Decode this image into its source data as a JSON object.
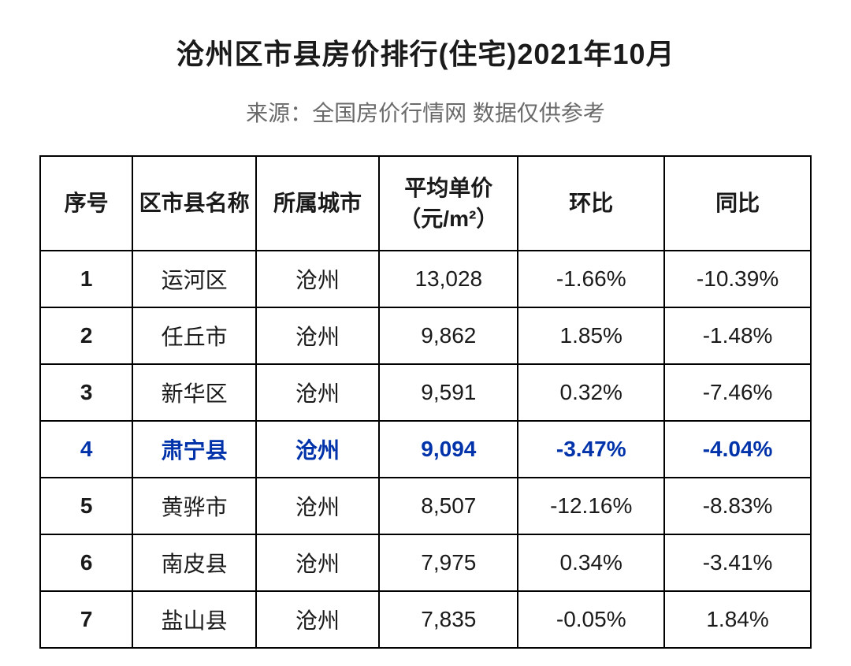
{
  "title": "沧州区市县房价排行(住宅)2021年10月",
  "subtitle": "来源：全国房价行情网 数据仅供参考",
  "table": {
    "columns": [
      "序号",
      "区市县名称",
      "所属城市",
      "平均单价\n（元/m²）",
      "环比",
      "同比"
    ],
    "column_widths_pct": [
      12,
      16,
      16,
      18,
      19,
      19
    ],
    "header_fontsize": 28,
    "cell_fontsize": 28,
    "border_color": "#000000",
    "border_width": 2,
    "highlight_row_index": 3,
    "highlight_color": "#0033aa",
    "rows": [
      {
        "rank": "1",
        "name": "运河区",
        "city": "沧州",
        "price": "13,028",
        "mom": "-1.66%",
        "yoy": "-10.39%"
      },
      {
        "rank": "2",
        "name": "任丘市",
        "city": "沧州",
        "price": "9,862",
        "mom": "1.85%",
        "yoy": "-1.48%"
      },
      {
        "rank": "3",
        "name": "新华区",
        "city": "沧州",
        "price": "9,591",
        "mom": "0.32%",
        "yoy": "-7.46%"
      },
      {
        "rank": "4",
        "name": "肃宁县",
        "city": "沧州",
        "price": "9,094",
        "mom": "-3.47%",
        "yoy": "-4.04%"
      },
      {
        "rank": "5",
        "name": "黄骅市",
        "city": "沧州",
        "price": "8,507",
        "mom": "-12.16%",
        "yoy": "-8.83%"
      },
      {
        "rank": "6",
        "name": "南皮县",
        "city": "沧州",
        "price": "7,975",
        "mom": "0.34%",
        "yoy": "-3.41%"
      },
      {
        "rank": "7",
        "name": "盐山县",
        "city": "沧州",
        "price": "7,835",
        "mom": "-0.05%",
        "yoy": "1.84%"
      }
    ]
  },
  "colors": {
    "background": "#ffffff",
    "text": "#1a1a1a",
    "subtitle": "#6a6a6a",
    "highlight": "#0033aa",
    "border": "#000000"
  }
}
